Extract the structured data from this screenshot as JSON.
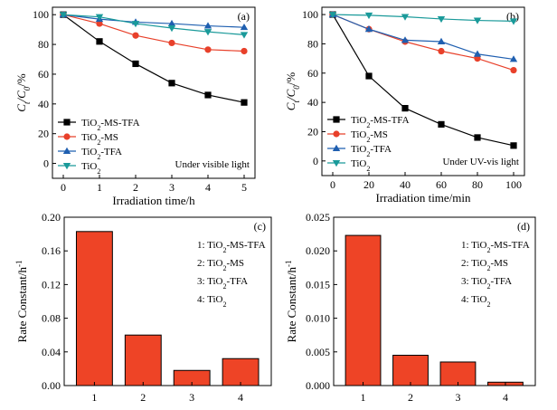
{
  "chart_data": [
    {
      "id": "a",
      "type": "line",
      "panel_label": "(a)",
      "annotation": "Under visible light",
      "xlabel": "Irradiation time/h",
      "ylabel": [
        "C",
        "t",
        "/C",
        "0",
        "/%"
      ],
      "xlim": [
        -0.3,
        5.3
      ],
      "ylim": [
        -10,
        105
      ],
      "xticks": [
        0,
        1,
        2,
        3,
        4,
        5
      ],
      "yticks": [
        0,
        20,
        40,
        60,
        80,
        100
      ],
      "legend_position": "bottom-left",
      "series": [
        {
          "name": [
            "TiO",
            "2",
            "-MS-TFA"
          ],
          "color": "#000000",
          "marker": "square",
          "x": [
            0,
            1,
            2,
            3,
            4,
            5
          ],
          "y": [
            100,
            82,
            67,
            54,
            46,
            41
          ]
        },
        {
          "name": [
            "TiO",
            "2",
            "-MS"
          ],
          "color": "#e8402a",
          "marker": "circle",
          "x": [
            0,
            1,
            2,
            3,
            4,
            5
          ],
          "y": [
            100,
            94,
            86,
            81,
            76.5,
            75.5
          ]
        },
        {
          "name": [
            "TiO",
            "2",
            "-TFA"
          ],
          "color": "#1f5fb0",
          "marker": "triangle-up",
          "x": [
            0,
            1,
            2,
            3,
            4,
            5
          ],
          "y": [
            100,
            97,
            95,
            94,
            92.5,
            91.5
          ]
        },
        {
          "name": [
            "TiO",
            "2",
            ""
          ],
          "color": "#1a9a9a",
          "marker": "triangle-down",
          "x": [
            0,
            1,
            2,
            3,
            4,
            5
          ],
          "y": [
            100,
            98.5,
            94,
            91,
            88.5,
            86.5
          ]
        }
      ]
    },
    {
      "id": "b",
      "type": "line",
      "panel_label": "(b)",
      "annotation": "Under UV-vis light",
      "xlabel": "Irradiation time/min",
      "ylabel": [
        "C",
        "t",
        "/C",
        "0",
        "/%"
      ],
      "xlim": [
        -6,
        106
      ],
      "ylim": [
        -10,
        105
      ],
      "xticks": [
        0,
        20,
        40,
        60,
        80,
        100
      ],
      "yticks": [
        0,
        20,
        40,
        60,
        80,
        100
      ],
      "legend_position": "bottom-left",
      "series": [
        {
          "name": [
            "TiO",
            "2",
            "-MS-TFA"
          ],
          "color": "#000000",
          "marker": "square",
          "x": [
            0,
            20,
            40,
            60,
            80,
            100
          ],
          "y": [
            100,
            58,
            36,
            25,
            16,
            10.5
          ]
        },
        {
          "name": [
            "TiO",
            "2",
            "-MS"
          ],
          "color": "#e8402a",
          "marker": "circle",
          "x": [
            0,
            20,
            40,
            60,
            80,
            100
          ],
          "y": [
            100,
            90,
            81.5,
            75,
            70,
            62
          ]
        },
        {
          "name": [
            "TiO",
            "2",
            "-TFA"
          ],
          "color": "#1f5fb0",
          "marker": "triangle-up",
          "x": [
            0,
            20,
            40,
            60,
            80,
            100
          ],
          "y": [
            100,
            90,
            82.5,
            81.5,
            73,
            69.5
          ]
        },
        {
          "name": [
            "TiO",
            "2",
            ""
          ],
          "color": "#1a9a9a",
          "marker": "triangle-down",
          "x": [
            0,
            20,
            40,
            60,
            80,
            100
          ],
          "y": [
            100,
            99.5,
            98.5,
            97,
            96,
            95.5
          ]
        }
      ]
    },
    {
      "id": "c",
      "type": "bar",
      "panel_label": "(c)",
      "ylabel": [
        "Rate Constant/h",
        "-1"
      ],
      "categories": [
        "1",
        "2",
        "3",
        "4"
      ],
      "values": [
        0.183,
        0.06,
        0.018,
        0.032
      ],
      "bar_color": "#ee4426",
      "ylim": [
        0,
        0.2
      ],
      "yticks": [
        "0.00",
        "0.04",
        "0.08",
        "0.12",
        "0.16",
        "0.20"
      ],
      "ytick_values": [
        0,
        0.04,
        0.08,
        0.12,
        0.16,
        0.2
      ],
      "legend_position": "top-right",
      "key": [
        [
          "1: TiO",
          "2",
          "-MS-TFA"
        ],
        [
          "2: TiO",
          "2",
          "-MS"
        ],
        [
          "3: TiO",
          "2",
          "-TFA"
        ],
        [
          "4: TiO",
          "2",
          ""
        ]
      ]
    },
    {
      "id": "d",
      "type": "bar",
      "panel_label": "(d)",
      "ylabel": [
        "Rate Constant/h",
        "-1"
      ],
      "categories": [
        "1",
        "2",
        "3",
        "4"
      ],
      "values": [
        0.0223,
        0.0045,
        0.0035,
        0.0005
      ],
      "bar_color": "#ee4426",
      "ylim": [
        0,
        0.025
      ],
      "yticks": [
        "0.000",
        "0.005",
        "0.010",
        "0.015",
        "0.020",
        "0.025"
      ],
      "ytick_values": [
        0,
        0.005,
        0.01,
        0.015,
        0.02,
        0.025
      ],
      "legend_position": "top-right",
      "key": [
        [
          "1: TiO",
          "2",
          "-MS-TFA"
        ],
        [
          "2: TiO",
          "2",
          "-MS"
        ],
        [
          "3: TiO",
          "2",
          "-TFA"
        ],
        [
          "4: TiO",
          "2",
          ""
        ]
      ]
    }
  ]
}
